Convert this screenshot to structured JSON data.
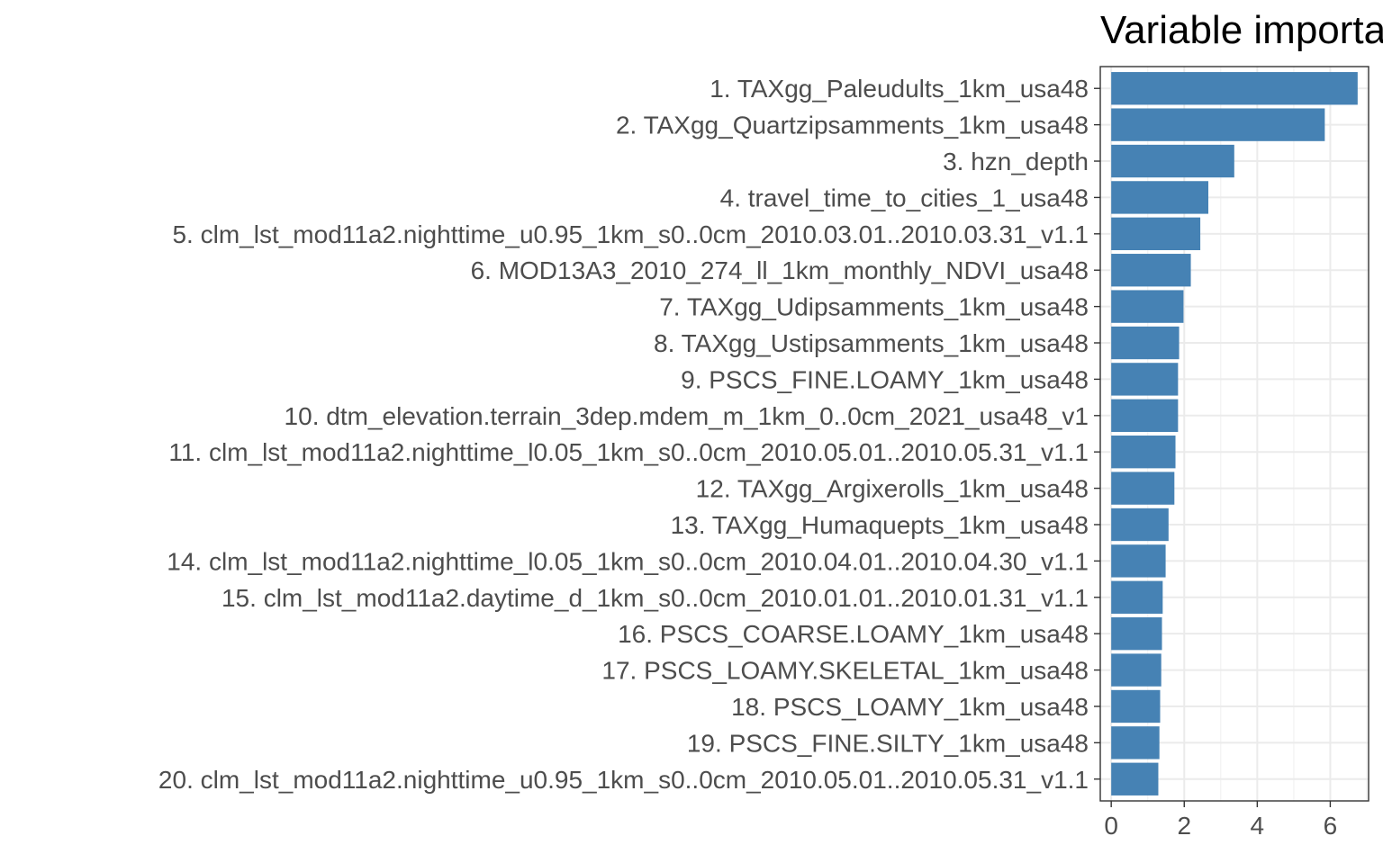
{
  "chart_data": {
    "type": "bar",
    "orientation": "horizontal",
    "title": "Variable importance",
    "xlabel": "",
    "ylabel": "",
    "bar_color": "#4682b4",
    "grid": true,
    "legend": "none",
    "xlim": [
      -0.3,
      7.05
    ],
    "x_ticks": [
      0,
      2,
      4,
      6
    ],
    "categories": [
      "1. TAXgg_Paleudults_1km_usa48",
      "2. TAXgg_Quartzipsamments_1km_usa48",
      "3. hzn_depth",
      "4. travel_time_to_cities_1_usa48",
      "5. clm_lst_mod11a2.nighttime_u0.95_1km_s0..0cm_2010.03.01..2010.03.31_v1.1",
      "6. MOD13A3_2010_274_ll_1km_monthly_NDVI_usa48",
      "7. TAXgg_Udipsamments_1km_usa48",
      "8. TAXgg_Ustipsamments_1km_usa48",
      "9. PSCS_FINE.LOAMY_1km_usa48",
      "10. dtm_elevation.terrain_3dep.mdem_m_1km_0..0cm_2021_usa48_v1",
      "11. clm_lst_mod11a2.nighttime_l0.05_1km_s0..0cm_2010.05.01..2010.05.31_v1.1",
      "12. TAXgg_Argixerolls_1km_usa48",
      "13. TAXgg_Humaquepts_1km_usa48",
      "14. clm_lst_mod11a2.nighttime_l0.05_1km_s0..0cm_2010.04.01..2010.04.30_v1.1",
      "15. clm_lst_mod11a2.daytime_d_1km_s0..0cm_2010.01.01..2010.01.31_v1.1",
      "16. PSCS_COARSE.LOAMY_1km_usa48",
      "17. PSCS_LOAMY.SKELETAL_1km_usa48",
      "18. PSCS_LOAMY_1km_usa48",
      "19. PSCS_FINE.SILTY_1km_usa48",
      "20. clm_lst_mod11a2.nighttime_u0.95_1km_s0..0cm_2010.05.01..2010.05.31_v1.1"
    ],
    "values": [
      6.75,
      5.85,
      3.37,
      2.66,
      2.44,
      2.18,
      1.98,
      1.86,
      1.83,
      1.83,
      1.76,
      1.73,
      1.57,
      1.49,
      1.41,
      1.39,
      1.37,
      1.34,
      1.32,
      1.29
    ]
  }
}
